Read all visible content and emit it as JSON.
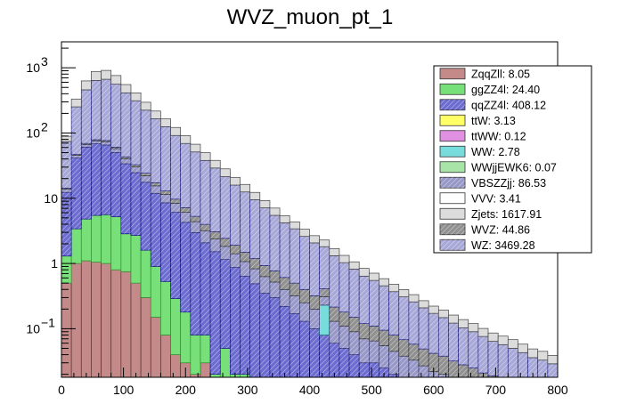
{
  "chart_data": {
    "type": "histogram-stack",
    "title": "WVZ_muon_pt_1",
    "xlabel": "",
    "ylabel": "",
    "xlim": [
      0,
      800
    ],
    "ylim": [
      0.018,
      2500
    ],
    "y_scale": "log",
    "bin_width": 16,
    "x_ticks": [
      0,
      100,
      200,
      300,
      400,
      500,
      600,
      700,
      800
    ],
    "x_tick_labels": [
      "0",
      "100",
      "200",
      "300",
      "400",
      "500",
      "600",
      "700",
      "800"
    ],
    "y_major_ticks": [
      0.1,
      1,
      10,
      100,
      1000
    ],
    "y_tick_labels": [
      {
        "base": "10",
        "exp": "−1"
      },
      {
        "base": "1",
        "exp": ""
      },
      {
        "base": "10",
        "exp": ""
      },
      {
        "base": "10",
        "exp": "2"
      },
      {
        "base": "10",
        "exp": "3"
      }
    ],
    "legend_position": "top-right",
    "legend": [
      {
        "label": "ZqqZll: 8.05",
        "color": "#c48a8a",
        "hatch": false
      },
      {
        "label": "ggZZ4l: 24.40",
        "color": "#78e078",
        "hatch": false
      },
      {
        "label": "qqZZ4l: 408.12",
        "color": "#6c6cd0",
        "hatch": true
      },
      {
        "label": "ttW: 3.13",
        "color": "#ffff66",
        "hatch": false
      },
      {
        "label": "ttWW: 0.12",
        "color": "#e090e0",
        "hatch": false
      },
      {
        "label": "WW: 2.78",
        "color": "#78dcdc",
        "hatch": false
      },
      {
        "label": "WWjjEWK6: 0.07",
        "color": "#a8e4a8",
        "hatch": false
      },
      {
        "label": "VBSZZjj: 86.53",
        "color": "#9898c8",
        "hatch": true
      },
      {
        "label": "VVV: 3.41",
        "color": "#ffffff",
        "hatch": false
      },
      {
        "label": "Zjets: 1617.91",
        "color": "#dcdcdc",
        "hatch": false
      },
      {
        "label": "WVZ: 44.86",
        "color": "#909090",
        "hatch": true
      },
      {
        "label": "WZ: 3469.28",
        "color": "#a8a8d8",
        "hatch": true
      }
    ],
    "stack": [
      {
        "name": "ZqqZll",
        "color": "#c48a8a",
        "edge": "#5a3030",
        "values": [
          0.5,
          1.0,
          1.1,
          1.05,
          1.0,
          0.8,
          0.75,
          0.5,
          0.3,
          0.15,
          0.08,
          0.04,
          0.03,
          0.02,
          0.03,
          0,
          0,
          0,
          0,
          0,
          0,
          0,
          0,
          0,
          0,
          0,
          0,
          0,
          0,
          0,
          0,
          0,
          0,
          0,
          0,
          0,
          0,
          0,
          0,
          0,
          0,
          0,
          0,
          0,
          0,
          0,
          0,
          0,
          0,
          0
        ]
      },
      {
        "name": "ggZZ4l",
        "color": "#78e078",
        "edge": "#2f8f2f",
        "values": [
          0.8,
          2.4,
          3.7,
          4.4,
          4.6,
          4.4,
          2.1,
          2.2,
          1.3,
          0.75,
          0.45,
          0.25,
          0.15,
          0.06,
          0.05,
          0.02,
          0.05,
          0.02,
          0.02,
          0.01,
          0,
          0,
          0,
          0,
          0,
          0,
          0,
          0,
          0,
          0,
          0,
          0,
          0,
          0,
          0,
          0,
          0,
          0,
          0,
          0,
          0,
          0,
          0,
          0,
          0,
          0,
          0,
          0,
          0,
          0
        ]
      },
      {
        "name": "qqZZ4l",
        "color": "#6c6cd0",
        "edge": "#101080",
        "values": [
          11,
          38,
          56,
          63,
          60,
          45,
          31,
          22,
          16,
          11,
          8,
          5.8,
          4.1,
          2.9,
          2.0,
          1.5,
          1.1,
          0.85,
          0.62,
          0.48,
          0.35,
          0.3,
          0.22,
          0.17,
          0.13,
          0.1,
          0.08,
          0.06,
          0.05,
          0.04,
          0.03,
          0.03,
          0.025,
          0.02,
          0.018,
          0.015,
          0.012,
          0.01,
          0.01,
          0.008,
          0.007,
          0.006,
          0.005,
          0.005,
          0.004,
          0.004,
          0.003,
          0.003,
          0.003,
          0.002
        ]
      },
      {
        "name": "WW",
        "color": "#78dcdc",
        "edge": "#207070",
        "values": [
          0,
          0,
          0,
          0,
          0,
          0,
          0,
          0,
          0,
          0,
          0,
          0,
          0,
          0,
          0,
          0,
          0,
          0,
          0,
          0,
          0,
          0,
          0,
          0,
          0,
          0,
          0.15,
          0,
          0,
          0,
          0,
          0,
          0,
          0,
          0,
          0,
          0,
          0,
          0,
          0,
          0,
          0,
          0,
          0,
          0,
          0,
          0,
          0,
          0,
          0
        ]
      },
      {
        "name": "VBSZZjj",
        "color": "#9898c8",
        "edge": "#303070",
        "values": [
          1.5,
          4,
          6,
          7.5,
          8,
          7.5,
          6.5,
          5.5,
          4.5,
          3.6,
          2.9,
          2.3,
          1.8,
          1.4,
          1.1,
          0.85,
          0.68,
          0.54,
          0.43,
          0.34,
          0.28,
          0.22,
          0.18,
          0.15,
          0.12,
          0.1,
          0.08,
          0.07,
          0.06,
          0.05,
          0.04,
          0.035,
          0.03,
          0.025,
          0.02,
          0.018,
          0.015,
          0.012,
          0.01,
          0.009,
          0.008,
          0.007,
          0.006,
          0.005,
          0.005,
          0.004,
          0.004,
          0.003,
          0.003,
          0.003
        ]
      },
      {
        "name": "WVZ",
        "color": "#909090",
        "edge": "#303030",
        "values": [
          0.5,
          1.5,
          2.5,
          3,
          3.2,
          3,
          2.7,
          2.4,
          2.1,
          1.8,
          1.5,
          1.3,
          1.1,
          0.9,
          0.8,
          0.7,
          0.6,
          0.5,
          0.42,
          0.36,
          0.3,
          0.25,
          0.21,
          0.18,
          0.15,
          0.12,
          0.1,
          0.085,
          0.07,
          0.06,
          0.05,
          0.045,
          0.04,
          0.035,
          0.03,
          0.025,
          0.022,
          0.02,
          0.018,
          0.015,
          0.013,
          0.012,
          0.01,
          0.009,
          0.008,
          0.007,
          0.006,
          0.005,
          0.005,
          0.004
        ]
      },
      {
        "name": "WZ",
        "color": "#a8a8d8",
        "edge": "#202080",
        "values": [
          60,
          205,
          390,
          560,
          590,
          500,
          370,
          280,
          200,
          148,
          112,
          82,
          62,
          46,
          34,
          26,
          19,
          14,
          11,
          8.3,
          6.2,
          4.7,
          3.6,
          2.9,
          2.2,
          1.75,
          1.4,
          1.1,
          0.85,
          0.67,
          0.52,
          0.44,
          0.36,
          0.29,
          0.24,
          0.2,
          0.16,
          0.13,
          0.11,
          0.09,
          0.075,
          0.065,
          0.055,
          0.045,
          0.04,
          0.035,
          0.03,
          0.025,
          0.022,
          0.02
        ]
      },
      {
        "name": "Zjets",
        "color": "#dcdcdc",
        "edge": "#404040",
        "values": [
          15,
          80,
          170,
          240,
          245,
          200,
          140,
          100,
          72,
          52,
          40,
          30,
          22,
          16,
          12,
          9,
          6.8,
          5,
          3.8,
          2.8,
          2.1,
          1.6,
          1.2,
          0.95,
          0.75,
          0.6,
          0.48,
          0.38,
          0.3,
          0.24,
          0.2,
          0.16,
          0.13,
          0.11,
          0.09,
          0.075,
          0.06,
          0.05,
          0.045,
          0.04,
          0.035,
          0.03,
          0.025,
          0.022,
          0.02,
          0.018,
          0.015,
          0.013,
          0.012,
          0.01
        ]
      }
    ]
  }
}
